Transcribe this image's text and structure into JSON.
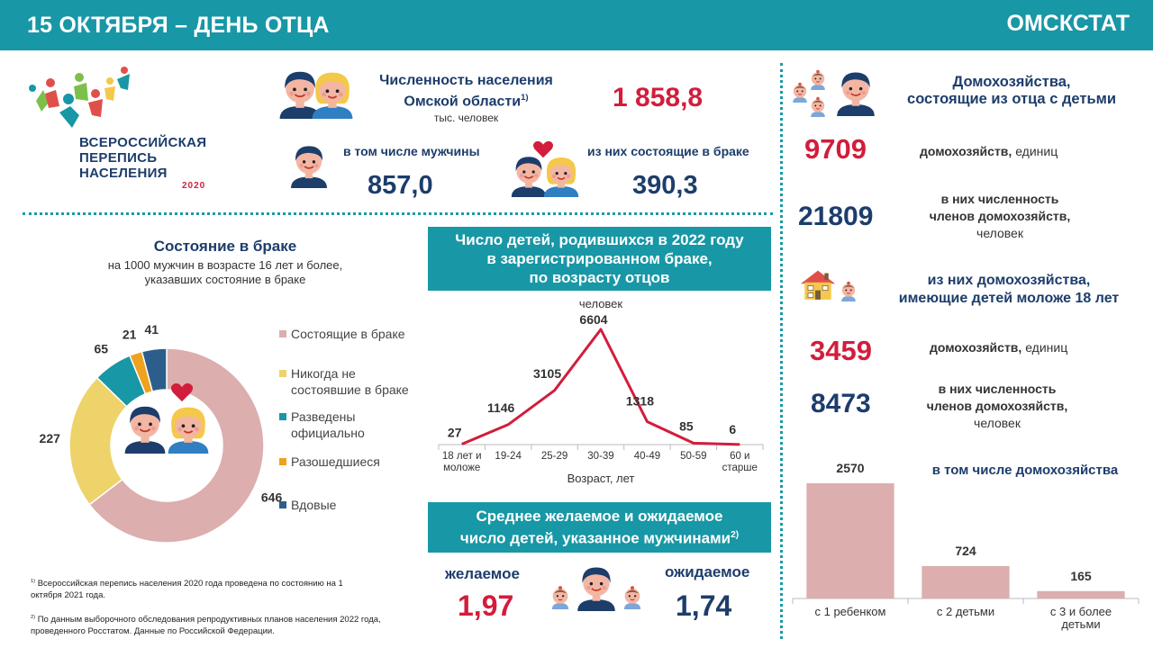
{
  "header": {
    "title": "15 ОКТЯБРЯ – ДЕНЬ ОТЦА",
    "org": "ОМСКСТАТ"
  },
  "logo": {
    "line1": "ВСЕРОССИЙСКАЯ",
    "line2": "ПЕРЕПИСЬ",
    "line3": "НАСЕЛЕНИЯ",
    "year": "2020"
  },
  "population": {
    "title_line1": "Численность населения",
    "title_line2": "Омской области",
    "title_sup": "1)",
    "unit": "тыс. человек",
    "value": "1 858,8",
    "men_label": "в том числе мужчины",
    "men_value": "857,0",
    "married_label": "из них состоящие в браке",
    "married_value": "390,3"
  },
  "households": {
    "title_line1": "Домохозяйства,",
    "title_line2": "состоящие из отца с детьми",
    "count": "9709",
    "count_label_bold": "домохозяйств,",
    "count_label_rest": " единиц",
    "members": "21809",
    "members_line1": "в них численность",
    "members_line2": "членов домохозяйств,",
    "members_line3": "человек",
    "under18_line1": "из них домохозяйства,",
    "under18_line2": "имеющие детей моложе 18 лет",
    "count2": "3459",
    "members2": "8473"
  },
  "marriage": {
    "title": "Состояние в браке",
    "subtitle_line1": "на 1000 мужчин в возрасте 16 лет и более,",
    "subtitle_line2": "указавших состояние в браке"
  },
  "births": {
    "title_line1": "Число детей, родившихся в 2022 году",
    "title_line2": "в зарегистрированном браке,",
    "title_line3": "по возрасту отцов"
  },
  "desired": {
    "title_line1": "Среднее желаемое и ожидаемое",
    "title_line2": "число детей, указанное мужчинами",
    "title_sup": "2)",
    "wanted_label": "желаемое",
    "wanted_value": "1,97",
    "expected_label": "ожидаемое",
    "expected_value": "1,74"
  },
  "footnotes": {
    "f1_sup": "1)",
    "f1": " Всероссийская перепись населения 2020 года проведена по состоянию на 1 октября 2021 года.",
    "f2_sup": "2)",
    "f2": " По данным выборочного обследования репродуктивных планов населения 2022 года, проведенного Росстатом. Данные по Российской Федерации."
  },
  "chart_data": [
    {
      "type": "pie",
      "donut": true,
      "categories": [
        "Состоящие в браке",
        "Никогда не состоявшие в браке",
        "Разведены официально",
        "Разошедшиеся",
        "Вдовые"
      ],
      "legend_lines": [
        [
          "Состоящие в браке"
        ],
        [
          "Никогда не",
          "состоявшие в браке"
        ],
        [
          "Разведены",
          "официально"
        ],
        [
          "Разошедшиеся"
        ],
        [
          "Вдовые"
        ]
      ],
      "values": [
        646,
        227,
        65,
        21,
        41
      ],
      "colors": [
        "#dcaeae",
        "#eed36a",
        "#1897a6",
        "#eea21d",
        "#2d5e8b"
      ],
      "legend": "right"
    },
    {
      "type": "line",
      "unit_label": "человек",
      "xlabel": "Возраст, лет",
      "categories": [
        "18 лет и моложе",
        "19-24",
        "25-29",
        "30-39",
        "40-49",
        "50-59",
        "60 и старше"
      ],
      "category_lines": [
        [
          "18 лет и",
          "моложе"
        ],
        [
          "19-24"
        ],
        [
          "25-29"
        ],
        [
          "30-39"
        ],
        [
          "40-49"
        ],
        [
          "50-59"
        ],
        [
          "60 и",
          "старше"
        ]
      ],
      "values": [
        27,
        1146,
        3105,
        6604,
        1318,
        85,
        6
      ],
      "ylim": [
        0,
        6604
      ],
      "color": "#d21d3c"
    },
    {
      "type": "bar",
      "title": "в том числе домохозяйства",
      "categories": [
        "с 1 ребенком",
        "с 2 детьми",
        "с 3 и более детьми"
      ],
      "category_lines": [
        [
          "с 1 ребенком"
        ],
        [
          "с 2 детьми"
        ],
        [
          "с 3 и более",
          "детьми"
        ]
      ],
      "values": [
        2570,
        724,
        165
      ],
      "color": "#dcaeae"
    }
  ]
}
